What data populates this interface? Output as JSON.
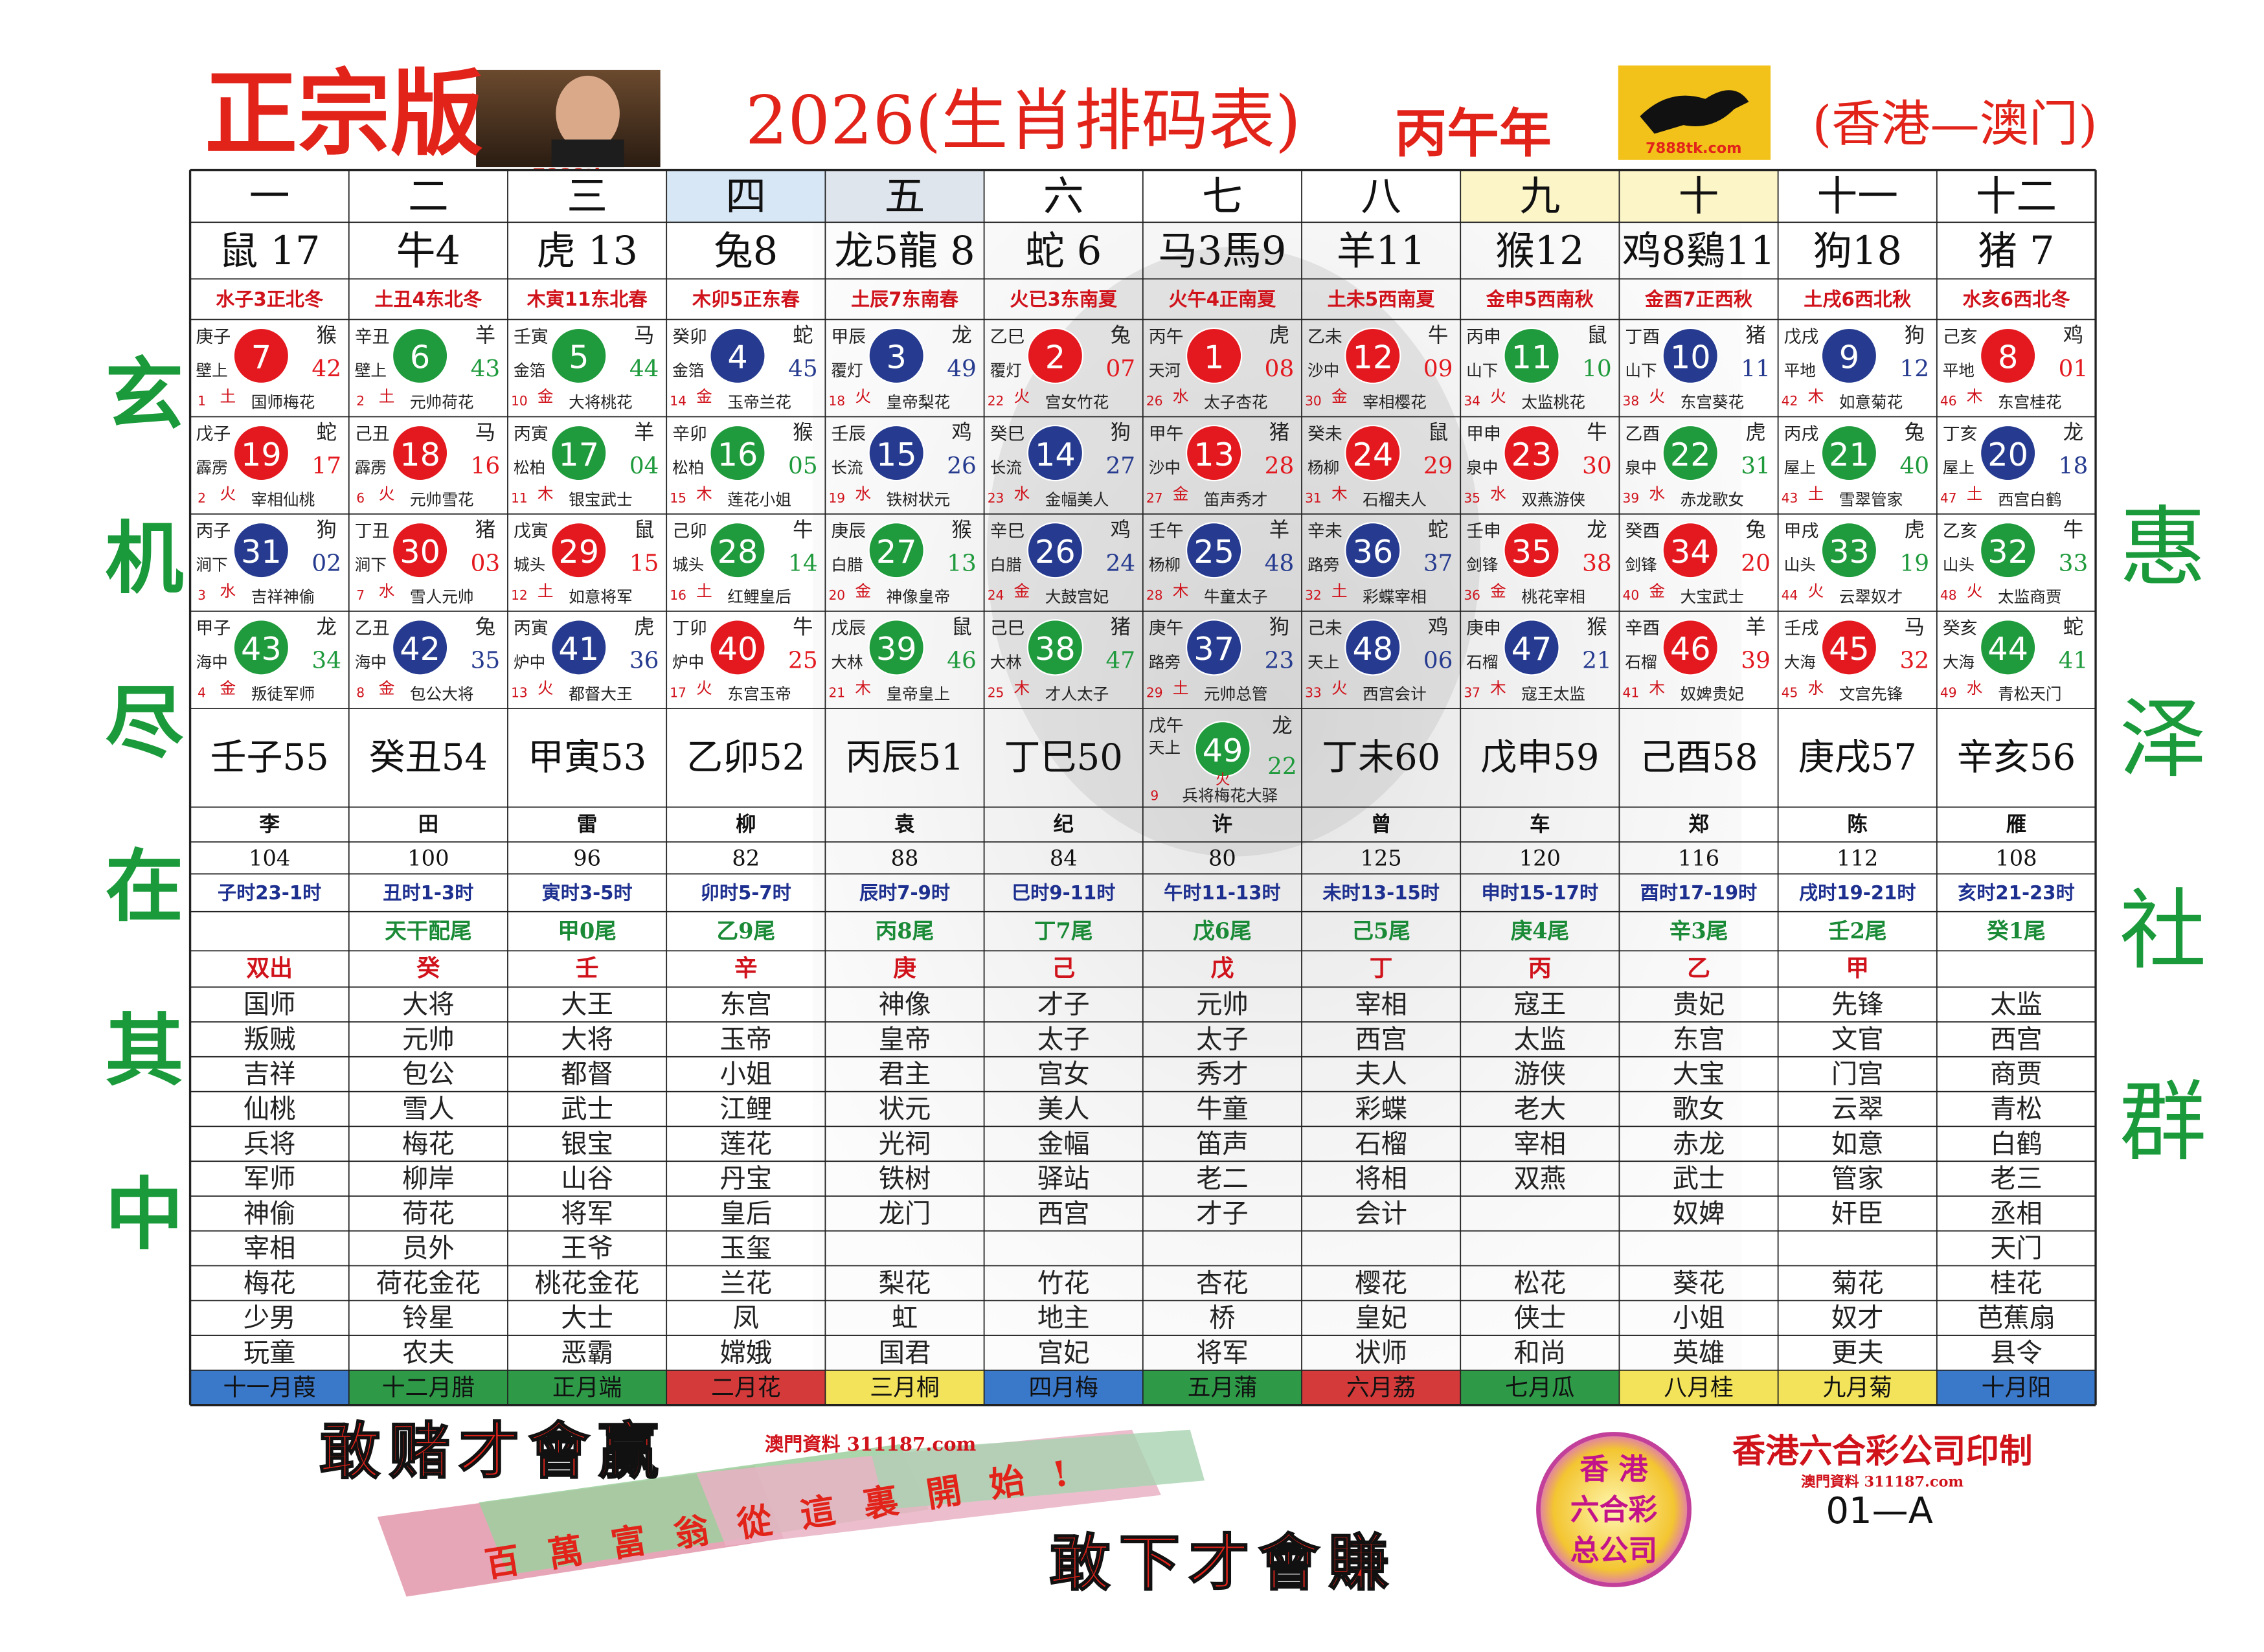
{
  "header": {
    "badge": "正宗版",
    "photo_caption": "7888tk.com",
    "title": "2026(生肖排码表)",
    "year": "丙午年",
    "logo_caption": "7888tk.com",
    "region": "(香港—澳门)"
  },
  "side": {
    "left": "玄机尽在其中",
    "right": "惠泽社群"
  },
  "table": {
    "columns": [
      "一",
      "二",
      "三",
      "四",
      "五",
      "六",
      "七",
      "八",
      "九",
      "十",
      "十一",
      "十二"
    ],
    "zodiacs": [
      "鼠 17",
      "牛4",
      "虎 13",
      "兔8",
      "龙5龍 8",
      "蛇 6",
      "马3馬9",
      "羊11",
      "猴12",
      "鸡8鷄11",
      "狗18",
      "猪 7"
    ],
    "elements": [
      "水子3正北冬",
      "土丑4东北冬",
      "木寅11东北春",
      "木卯5正东春",
      "土辰7东南春",
      "火已3东南夏",
      "火午4正南夏",
      "土未5西南夏",
      "金申5西南秋",
      "金酉7正西秋",
      "土戌6西北秋",
      "水亥6西北冬"
    ],
    "number_rows": [
      [
        {
          "gz": "庚子",
          "ny": "壁上",
          "n": "7",
          "c": "#e3191f",
          "z": "猴",
          "p": "42",
          "o": "1",
          "e": "土",
          "w": "国师梅花"
        },
        {
          "gz": "辛丑",
          "ny": "壁上",
          "n": "6",
          "c": "#1f9a3c",
          "z": "羊",
          "p": "43",
          "o": "2",
          "e": "土",
          "w": "元帅荷花"
        },
        {
          "gz": "壬寅",
          "ny": "金箔",
          "n": "5",
          "c": "#1f9a3c",
          "z": "马",
          "p": "44",
          "o": "10",
          "e": "金",
          "w": "大将桃花"
        },
        {
          "gz": "癸卯",
          "ny": "金箔",
          "n": "4",
          "c": "#263b8f",
          "z": "蛇",
          "p": "45",
          "o": "14",
          "e": "金",
          "w": "玉帝兰花"
        },
        {
          "gz": "甲辰",
          "ny": "覆灯",
          "n": "3",
          "c": "#263b8f",
          "z": "龙",
          "p": "49",
          "o": "18",
          "e": "火",
          "w": "皇帝梨花"
        },
        {
          "gz": "乙巳",
          "ny": "覆灯",
          "n": "2",
          "c": "#e3191f",
          "z": "兔",
          "p": "07",
          "o": "22",
          "e": "火",
          "w": "宫女竹花"
        },
        {
          "gz": "丙午",
          "ny": "天河",
          "n": "1",
          "c": "#e3191f",
          "z": "虎",
          "p": "08",
          "o": "26",
          "e": "水",
          "w": "太子杏花"
        },
        {
          "gz": "乙未",
          "ny": "沙中",
          "n": "12",
          "c": "#e3191f",
          "z": "牛",
          "p": "09",
          "o": "30",
          "e": "金",
          "w": "宰相樱花"
        },
        {
          "gz": "丙申",
          "ny": "山下",
          "n": "11",
          "c": "#1f9a3c",
          "z": "鼠",
          "p": "10",
          "o": "34",
          "e": "火",
          "w": "太监桃花"
        },
        {
          "gz": "丁酉",
          "ny": "山下",
          "n": "10",
          "c": "#263b8f",
          "z": "猪",
          "p": "11",
          "o": "38",
          "e": "火",
          "w": "东宫葵花"
        },
        {
          "gz": "戊戌",
          "ny": "平地",
          "n": "9",
          "c": "#263b8f",
          "z": "狗",
          "p": "12",
          "o": "42",
          "e": "木",
          "w": "如意菊花"
        },
        {
          "gz": "己亥",
          "ny": "平地",
          "n": "8",
          "c": "#e3191f",
          "z": "鸡",
          "p": "01",
          "o": "46",
          "e": "木",
          "w": "东宫桂花"
        }
      ],
      [
        {
          "gz": "戊子",
          "ny": "霹雳",
          "n": "19",
          "c": "#e3191f",
          "z": "蛇",
          "p": "17",
          "o": "2",
          "e": "火",
          "w": "宰相仙桃"
        },
        {
          "gz": "己丑",
          "ny": "霹雳",
          "n": "18",
          "c": "#e3191f",
          "z": "马",
          "p": "16",
          "o": "6",
          "e": "火",
          "w": "元帅雪花"
        },
        {
          "gz": "丙寅",
          "ny": "松柏",
          "n": "17",
          "c": "#1f9a3c",
          "z": "羊",
          "p": "04",
          "o": "11",
          "e": "木",
          "w": "银宝武士"
        },
        {
          "gz": "辛卯",
          "ny": "松柏",
          "n": "16",
          "c": "#1f9a3c",
          "z": "猴",
          "p": "05",
          "o": "15",
          "e": "木",
          "w": "莲花小姐"
        },
        {
          "gz": "壬辰",
          "ny": "长流",
          "n": "15",
          "c": "#263b8f",
          "z": "鸡",
          "p": "26",
          "o": "19",
          "e": "水",
          "w": "铁树状元"
        },
        {
          "gz": "癸巳",
          "ny": "长流",
          "n": "14",
          "c": "#263b8f",
          "z": "狗",
          "p": "27",
          "o": "23",
          "e": "水",
          "w": "金幅美人"
        },
        {
          "gz": "甲午",
          "ny": "沙中",
          "n": "13",
          "c": "#e3191f",
          "z": "猪",
          "p": "28",
          "o": "27",
          "e": "金",
          "w": "笛声秀才"
        },
        {
          "gz": "癸未",
          "ny": "杨柳",
          "n": "24",
          "c": "#e3191f",
          "z": "鼠",
          "p": "29",
          "o": "31",
          "e": "木",
          "w": "石榴夫人"
        },
        {
          "gz": "甲申",
          "ny": "泉中",
          "n": "23",
          "c": "#e3191f",
          "z": "牛",
          "p": "30",
          "o": "35",
          "e": "水",
          "w": "双燕游侠"
        },
        {
          "gz": "乙酉",
          "ny": "泉中",
          "n": "22",
          "c": "#1f9a3c",
          "z": "虎",
          "p": "31",
          "o": "39",
          "e": "水",
          "w": "赤龙歌女"
        },
        {
          "gz": "丙戌",
          "ny": "屋上",
          "n": "21",
          "c": "#1f9a3c",
          "z": "兔",
          "p": "40",
          "o": "43",
          "e": "土",
          "w": "雪翠管家"
        },
        {
          "gz": "丁亥",
          "ny": "屋上",
          "n": "20",
          "c": "#263b8f",
          "z": "龙",
          "p": "18",
          "o": "47",
          "e": "土",
          "w": "西宫白鹤"
        }
      ],
      [
        {
          "gz": "丙子",
          "ny": "涧下",
          "n": "31",
          "c": "#263b8f",
          "z": "狗",
          "p": "02",
          "o": "3",
          "e": "水",
          "w": "吉祥神偷"
        },
        {
          "gz": "丁丑",
          "ny": "涧下",
          "n": "30",
          "c": "#e3191f",
          "z": "猪",
          "p": "03",
          "o": "7",
          "e": "水",
          "w": "雪人元帅"
        },
        {
          "gz": "戊寅",
          "ny": "城头",
          "n": "29",
          "c": "#e3191f",
          "z": "鼠",
          "p": "15",
          "o": "12",
          "e": "土",
          "w": "如意将军"
        },
        {
          "gz": "己卯",
          "ny": "城头",
          "n": "28",
          "c": "#1f9a3c",
          "z": "牛",
          "p": "14",
          "o": "16",
          "e": "土",
          "w": "红鲤皇后"
        },
        {
          "gz": "庚辰",
          "ny": "白腊",
          "n": "27",
          "c": "#1f9a3c",
          "z": "猴",
          "p": "13",
          "o": "20",
          "e": "金",
          "w": "神像皇帝"
        },
        {
          "gz": "辛巳",
          "ny": "白腊",
          "n": "26",
          "c": "#263b8f",
          "z": "鸡",
          "p": "24",
          "o": "24",
          "e": "金",
          "w": "大鼓宫妃"
        },
        {
          "gz": "壬午",
          "ny": "杨柳",
          "n": "25",
          "c": "#263b8f",
          "z": "羊",
          "p": "48",
          "o": "28",
          "e": "木",
          "w": "牛童太子"
        },
        {
          "gz": "辛未",
          "ny": "路旁",
          "n": "36",
          "c": "#263b8f",
          "z": "蛇",
          "p": "37",
          "o": "32",
          "e": "土",
          "w": "彩蝶宰相"
        },
        {
          "gz": "壬申",
          "ny": "剑锋",
          "n": "35",
          "c": "#e3191f",
          "z": "龙",
          "p": "38",
          "o": "36",
          "e": "金",
          "w": "桃花宰相"
        },
        {
          "gz": "癸酉",
          "ny": "剑锋",
          "n": "34",
          "c": "#e3191f",
          "z": "兔",
          "p": "20",
          "o": "40",
          "e": "金",
          "w": "大宝武士"
        },
        {
          "gz": "甲戌",
          "ny": "山头",
          "n": "33",
          "c": "#1f9a3c",
          "z": "虎",
          "p": "19",
          "o": "44",
          "e": "火",
          "w": "云翠奴才"
        },
        {
          "gz": "乙亥",
          "ny": "山头",
          "n": "32",
          "c": "#1f9a3c",
          "z": "牛",
          "p": "33",
          "o": "48",
          "e": "火",
          "w": "太监商贾"
        }
      ],
      [
        {
          "gz": "甲子",
          "ny": "海中",
          "n": "43",
          "c": "#1f9a3c",
          "z": "龙",
          "p": "34",
          "o": "4",
          "e": "金",
          "w": "叛徒军师"
        },
        {
          "gz": "乙丑",
          "ny": "海中",
          "n": "42",
          "c": "#263b8f",
          "z": "兔",
          "p": "35",
          "o": "8",
          "e": "金",
          "w": "包公大将"
        },
        {
          "gz": "丙寅",
          "ny": "炉中",
          "n": "41",
          "c": "#263b8f",
          "z": "虎",
          "p": "36",
          "o": "13",
          "e": "火",
          "w": "都督大王"
        },
        {
          "gz": "丁卯",
          "ny": "炉中",
          "n": "40",
          "c": "#e3191f",
          "z": "牛",
          "p": "25",
          "o": "17",
          "e": "火",
          "w": "东宫玉帝"
        },
        {
          "gz": "戊辰",
          "ny": "大林",
          "n": "39",
          "c": "#1f9a3c",
          "z": "鼠",
          "p": "46",
          "o": "21",
          "e": "木",
          "w": "皇帝皇上"
        },
        {
          "gz": "己巳",
          "ny": "大林",
          "n": "38",
          "c": "#1f9a3c",
          "z": "猪",
          "p": "47",
          "o": "25",
          "e": "木",
          "w": "才人太子"
        },
        {
          "gz": "庚午",
          "ny": "路旁",
          "n": "37",
          "c": "#263b8f",
          "z": "狗",
          "p": "23",
          "o": "29",
          "e": "土",
          "w": "元帅总管"
        },
        {
          "gz": "己未",
          "ny": "天上",
          "n": "48",
          "c": "#263b8f",
          "z": "鸡",
          "p": "06",
          "o": "33",
          "e": "火",
          "w": "西宫会计"
        },
        {
          "gz": "庚申",
          "ny": "石榴",
          "n": "47",
          "c": "#263b8f",
          "z": "猴",
          "p": "21",
          "o": "37",
          "e": "木",
          "w": "寇王太监"
        },
        {
          "gz": "辛酉",
          "ny": "石榴",
          "n": "46",
          "c": "#e3191f",
          "z": "羊",
          "p": "39",
          "o": "41",
          "e": "木",
          "w": "奴婢贵妃"
        },
        {
          "gz": "壬戌",
          "ny": "大海",
          "n": "45",
          "c": "#e3191f",
          "z": "马",
          "p": "32",
          "o": "45",
          "e": "水",
          "w": "文宫先锋"
        },
        {
          "gz": "癸亥",
          "ny": "大海",
          "n": "44",
          "c": "#1f9a3c",
          "z": "蛇",
          "p": "41",
          "o": "49",
          "e": "水",
          "w": "青松天门"
        }
      ]
    ],
    "ganzhi_row": [
      "壬子55",
      "癸丑54",
      "甲寅53",
      "乙卯52",
      "丙辰51",
      "丁巳50",
      {
        "gz": "戊午",
        "ny": "天上",
        "n": "49",
        "c": "#1f9a3c",
        "z": "龙",
        "p": "22",
        "o": "9",
        "e": "火",
        "w": "兵将梅花大驿"
      },
      "丁未60",
      "戊申59",
      "己酉58",
      "庚戌57",
      "辛亥56"
    ],
    "surnames": [
      "李",
      "田",
      "雷",
      "柳",
      "袁",
      "纪",
      "许",
      "曾",
      "车",
      "郑",
      "陈",
      "雁"
    ],
    "surname_numbers": [
      "104",
      "100",
      "96",
      "82",
      "88",
      "84",
      "80",
      "125",
      "120",
      "116",
      "112",
      "108"
    ],
    "hours": [
      "子时23-1时",
      "丑时1-3时",
      "寅时3-5时",
      "卯时5-7时",
      "辰时7-9时",
      "巳时9-11时",
      "午时11-13时",
      "未时13-15时",
      "申时15-17时",
      "酉时17-19时",
      "戌时19-21时",
      "亥时21-23时"
    ],
    "tails": [
      null,
      "天干配尾",
      "甲0尾",
      "乙9尾",
      "丙8尾",
      "丁7尾",
      "戊6尾",
      "己5尾",
      "庚4尾",
      "辛3尾",
      "壬2尾",
      "癸1尾"
    ],
    "stems": [
      "双出",
      "癸",
      "壬",
      "辛",
      "庚",
      "己",
      "戊",
      "丁",
      "丙",
      "乙",
      "甲",
      null
    ],
    "words": [
      [
        "国师",
        "大将",
        "大王",
        "东宫",
        "神像",
        "才子",
        "元帅",
        "宰相",
        "寇王",
        "贵妃",
        "先锋",
        "太监"
      ],
      [
        "叛贼",
        "元帅",
        "大将",
        "玉帝",
        "皇帝",
        "太子",
        "太子",
        "西宫",
        "太监",
        "东宫",
        "文官",
        "西宫"
      ],
      [
        "吉祥",
        "包公",
        "都督",
        "小姐",
        "君主",
        "宫女",
        "秀才",
        "夫人",
        "游侠",
        "大宝",
        "门宫",
        "商贾"
      ],
      [
        "仙桃",
        "雪人",
        "武士",
        "江鲤",
        "状元",
        "美人",
        "牛童",
        "彩蝶",
        "老大",
        "歌女",
        "云翠",
        "青松"
      ],
      [
        "兵将",
        "梅花",
        "银宝",
        "莲花",
        "光祠",
        "金幅",
        "笛声",
        "石榴",
        "宰相",
        "赤龙",
        "如意",
        "白鹤"
      ],
      [
        "军师",
        "柳岸",
        "山谷",
        "丹宝",
        "铁树",
        "驿站",
        "老二",
        "将相",
        "双燕",
        "武士",
        "管家",
        "老三"
      ],
      [
        "神偷",
        "荷花",
        "将军",
        "皇后",
        "龙门",
        "西宫",
        "才子",
        "会计",
        null,
        "奴婢",
        "奸臣",
        "丞相"
      ],
      [
        "宰相",
        "员外",
        "王爷",
        "玉玺",
        null,
        null,
        null,
        null,
        null,
        null,
        null,
        "天门"
      ],
      [
        "梅花",
        "荷花金花",
        "桃花金花",
        "兰花",
        "梨花",
        "竹花",
        "杏花",
        "樱花",
        "松花",
        "葵花",
        "菊花",
        "桂花"
      ],
      [
        "少男",
        "铃星",
        "大士",
        "凤",
        "虹",
        "地主",
        "桥",
        "皇妃",
        "侠士",
        "小姐",
        "奴才",
        "芭蕉扇"
      ],
      [
        "玩童",
        "农夫",
        "恶霸",
        "嫦娥",
        "国君",
        "宫妃",
        "将军",
        "状师",
        "和尚",
        "英雄",
        "更夫",
        "县令"
      ]
    ],
    "months": [
      "十一月葭",
      "十二月腊",
      "正月端",
      "二月花",
      "三月桐",
      "四月梅",
      "五月蒲",
      "六月荔",
      "七月瓜",
      "八月桂",
      "九月菊",
      "十月阳"
    ],
    "month_colors": [
      "#3a78c9",
      "#2e9a48",
      "#2e9a48",
      "#d43a3a",
      "#f2e35a",
      "#3a78c9",
      "#2e9a48",
      "#d43a3a",
      "#2e9a48",
      "#f2e35a",
      "#f2e35a",
      "#3a78c9"
    ]
  },
  "footer": {
    "slogan_top": "敢赌才會赢",
    "site_top": "澳門資料 311187.com",
    "banner": "百萬富翁從這裏開始!",
    "slogan_bottom": "敢下才會賺",
    "logo_lines": [
      "香 港",
      "六合彩",
      "总公司"
    ],
    "publisher": "香港六合彩公司印制",
    "site_bottom": "澳門資料 311187.com",
    "code": "01—A"
  }
}
